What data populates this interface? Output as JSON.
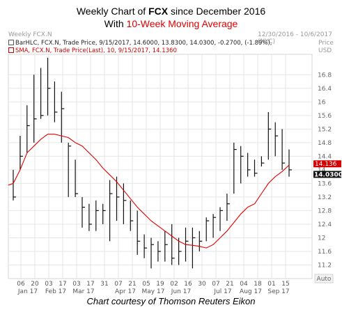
{
  "header": {
    "line1_prefix": "Weekly Chart of ",
    "line1_ticker": "FCX",
    "line1_suffix": " since December 2016",
    "line2_prefix": "With ",
    "line2_ma": "10-Week Moving Average"
  },
  "chart_title": "Weekly FCX.N",
  "date_range": "12/30/2016 - 10/6/2017 (NYC)",
  "price_unit_label": "Price",
  "currency_label": "USD",
  "legend": {
    "barhlc": "BarHLC, FCX.N, Trade Price, 9/15/2017, 14.6000, 13.8300, 14.0300, -0.2700, (-1.89%),",
    "sma": "SMA, FCX.N, Trade Price(Last), 10, 9/15/2017, 14.1360"
  },
  "price_tags": {
    "sma": "14.136",
    "close": "14.0300"
  },
  "autoscale_label": "Auto",
  "credit": "Chart courtesy of Thomson Reuters Eikon",
  "colors": {
    "bars": "#111111",
    "sma": "#e00000",
    "grid": "#e6e6e6"
  },
  "chart_data": {
    "type": "line",
    "ylim": [
      10.8,
      17.4
    ],
    "y_ticks": [
      11.2,
      11.6,
      12,
      12.4,
      12.8,
      13.2,
      13.6,
      14,
      14.4,
      14.8,
      15.2,
      15.6,
      16,
      16.4,
      16.8
    ],
    "y_tick_labels": [
      "11.2",
      "11.6",
      "12",
      "12.4",
      "12.8",
      "13.2",
      "13.6",
      "14",
      "14.4",
      "14.8",
      "15.2",
      "15.6",
      "16",
      "16.4",
      "16.8"
    ],
    "x_tick_labels": [
      {
        "day": "06",
        "month": "Jan 17"
      },
      {
        "day": "20",
        "month": ""
      },
      {
        "day": "03",
        "month": "Feb 17"
      },
      {
        "day": "17",
        "month": ""
      },
      {
        "day": "03",
        "month": "Mar 17"
      },
      {
        "day": "17",
        "month": ""
      },
      {
        "day": "31",
        "month": ""
      },
      {
        "day": "07",
        "month": "Apr 17"
      },
      {
        "day": "21",
        "month": ""
      },
      {
        "day": "05",
        "month": "May 17"
      },
      {
        "day": "19",
        "month": ""
      },
      {
        "day": "02",
        "month": "Jun 17"
      },
      {
        "day": "16",
        "month": ""
      },
      {
        "day": "30",
        "month": ""
      },
      {
        "day": "07",
        "month": "Jul 17"
      },
      {
        "day": "21",
        "month": ""
      },
      {
        "day": "04",
        "month": "Aug 17"
      },
      {
        "day": "18",
        "month": ""
      },
      {
        "day": "01",
        "month": "Sep 17"
      },
      {
        "day": "15",
        "month": ""
      }
    ],
    "series": [
      {
        "name": "BarHLC, FCX.N, Trade Price",
        "ohlc_weeks": [
          {
            "h": 14.0,
            "l": 13.1,
            "c": 13.2
          },
          {
            "h": 15.0,
            "l": 14.0,
            "c": 14.4
          },
          {
            "h": 15.9,
            "l": 14.5,
            "c": 15.3
          },
          {
            "h": 16.8,
            "l": 14.8,
            "c": 15.5
          },
          {
            "h": 17.0,
            "l": 15.5,
            "c": 15.6
          },
          {
            "h": 17.3,
            "l": 15.6,
            "c": 16.4
          },
          {
            "h": 16.6,
            "l": 15.4,
            "c": 15.7
          },
          {
            "h": 16.3,
            "l": 14.8,
            "c": 15.8
          },
          {
            "h": 14.8,
            "l": 13.2,
            "c": 14.7
          },
          {
            "h": 14.3,
            "l": 13.2,
            "c": 13.3
          },
          {
            "h": 13.2,
            "l": 12.3,
            "c": 12.9
          },
          {
            "h": 13.0,
            "l": 12.2,
            "c": 12.4
          },
          {
            "h": 13.1,
            "l": 12.2,
            "c": 12.8
          },
          {
            "h": 13.0,
            "l": 12.4,
            "c": 12.8
          },
          {
            "h": 13.7,
            "l": 11.9,
            "c": 13.3
          },
          {
            "h": 13.8,
            "l": 12.5,
            "c": 13.2
          },
          {
            "h": 13.6,
            "l": 12.4,
            "c": 13.1
          },
          {
            "h": 13.1,
            "l": 12.2,
            "c": 12.5
          },
          {
            "h": 12.8,
            "l": 11.5,
            "c": 11.9
          },
          {
            "h": 12.1,
            "l": 11.4,
            "c": 11.7
          },
          {
            "h": 12.0,
            "l": 11.1,
            "c": 11.8
          },
          {
            "h": 11.9,
            "l": 11.3,
            "c": 11.6
          },
          {
            "h": 12.2,
            "l": 11.3,
            "c": 11.8
          },
          {
            "h": 12.4,
            "l": 11.2,
            "c": 11.4
          },
          {
            "h": 12.0,
            "l": 11.2,
            "c": 11.6
          },
          {
            "h": 12.3,
            "l": 11.3,
            "c": 11.9
          },
          {
            "h": 12.3,
            "l": 11.1,
            "c": 12.0
          },
          {
            "h": 12.2,
            "l": 11.6,
            "c": 11.9
          },
          {
            "h": 12.6,
            "l": 11.9,
            "c": 12.5
          },
          {
            "h": 12.7,
            "l": 12.0,
            "c": 12.6
          },
          {
            "h": 12.9,
            "l": 12.2,
            "c": 12.8
          },
          {
            "h": 13.3,
            "l": 12.5,
            "c": 13.0
          },
          {
            "h": 14.8,
            "l": 13.3,
            "c": 14.6
          },
          {
            "h": 14.7,
            "l": 13.6,
            "c": 14.4
          },
          {
            "h": 14.5,
            "l": 13.8,
            "c": 14.0
          },
          {
            "h": 14.3,
            "l": 13.8,
            "c": 13.9
          },
          {
            "h": 14.4,
            "l": 14.1,
            "c": 14.2
          },
          {
            "h": 15.7,
            "l": 14.3,
            "c": 15.2
          },
          {
            "h": 15.4,
            "l": 14.4,
            "c": 15.0
          },
          {
            "h": 15.2,
            "l": 14.0,
            "c": 14.2
          },
          {
            "h": 14.6,
            "l": 13.8,
            "c": 14.0
          }
        ]
      },
      {
        "name": "SMA, FCX.N, Trade Price(Last), 10",
        "values": [
          13.6,
          14.0,
          14.5,
          14.7,
          14.9,
          15.05,
          15.05,
          15.0,
          14.95,
          14.8,
          14.7,
          14.5,
          14.3,
          14.05,
          13.85,
          13.65,
          13.4,
          13.15,
          12.9,
          12.7,
          12.5,
          12.35,
          12.2,
          12.05,
          11.9,
          11.8,
          11.78,
          11.75,
          11.7,
          11.8,
          12.0,
          12.2,
          12.45,
          12.7,
          12.9,
          13.0,
          13.3,
          13.6,
          13.8,
          13.95,
          14.14
        ]
      }
    ]
  }
}
